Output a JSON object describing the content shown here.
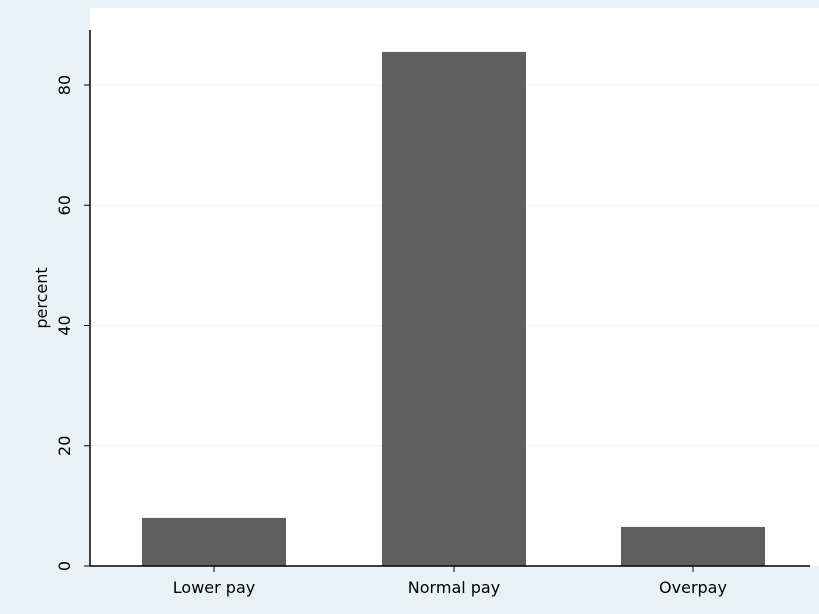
{
  "chart_data": {
    "type": "bar",
    "title": "",
    "xlabel": "",
    "ylabel": "percent",
    "categories": [
      "Lower pay",
      "Normal pay",
      "Overpay"
    ],
    "values": [
      8,
      85.5,
      6.5
    ],
    "yticks": [
      0,
      20,
      40,
      60,
      80
    ],
    "ytick_labels": [
      "0",
      "20",
      "40",
      "60",
      "80"
    ],
    "ylim": [
      0,
      89
    ],
    "grid": true,
    "legend": "none",
    "colors": {
      "bar": "#5f5f5f",
      "grid": "#eaf1f4",
      "axis": "#000000",
      "plot_background": "#ffffff",
      "outer_background": "#eaf1f4"
    }
  }
}
